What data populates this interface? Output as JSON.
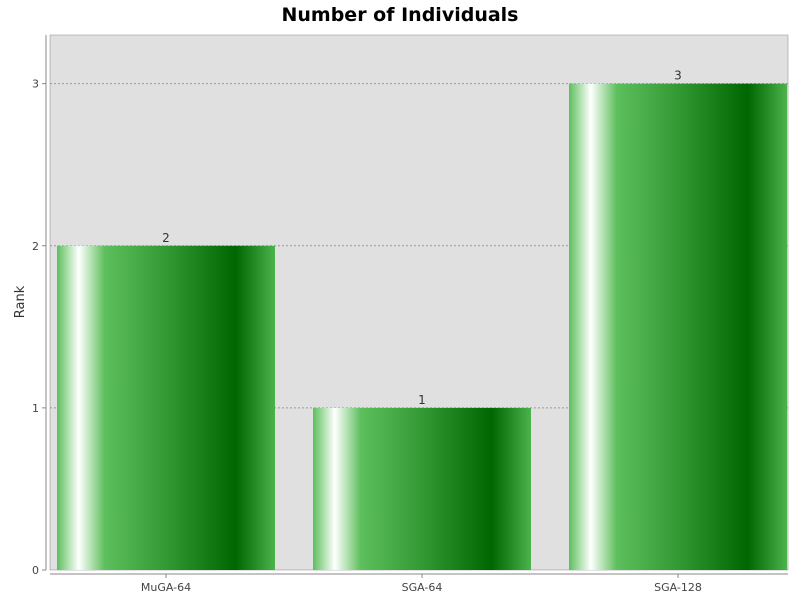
{
  "chart_data": {
    "type": "bar",
    "title": "Number of Individuals",
    "xlabel": "",
    "ylabel": "Rank",
    "categories": [
      "MuGA-64",
      "SGA-64",
      "SGA-128"
    ],
    "values": [
      2,
      1,
      3
    ],
    "data_labels": [
      "2",
      "1",
      "3"
    ],
    "ylim": [
      0,
      3.3
    ],
    "yticks": [
      0,
      1,
      2,
      3
    ],
    "ytick_labels": [
      "0",
      "1",
      "2",
      "3"
    ],
    "grid": true,
    "legend": "none",
    "colors": {
      "plot_background": "#e0e0e0",
      "bar_dark": "#006600",
      "bar_mid": "#5cbf5c",
      "bar_light": "#ffffff",
      "gridline": "#999999",
      "axis": "#888888"
    }
  }
}
